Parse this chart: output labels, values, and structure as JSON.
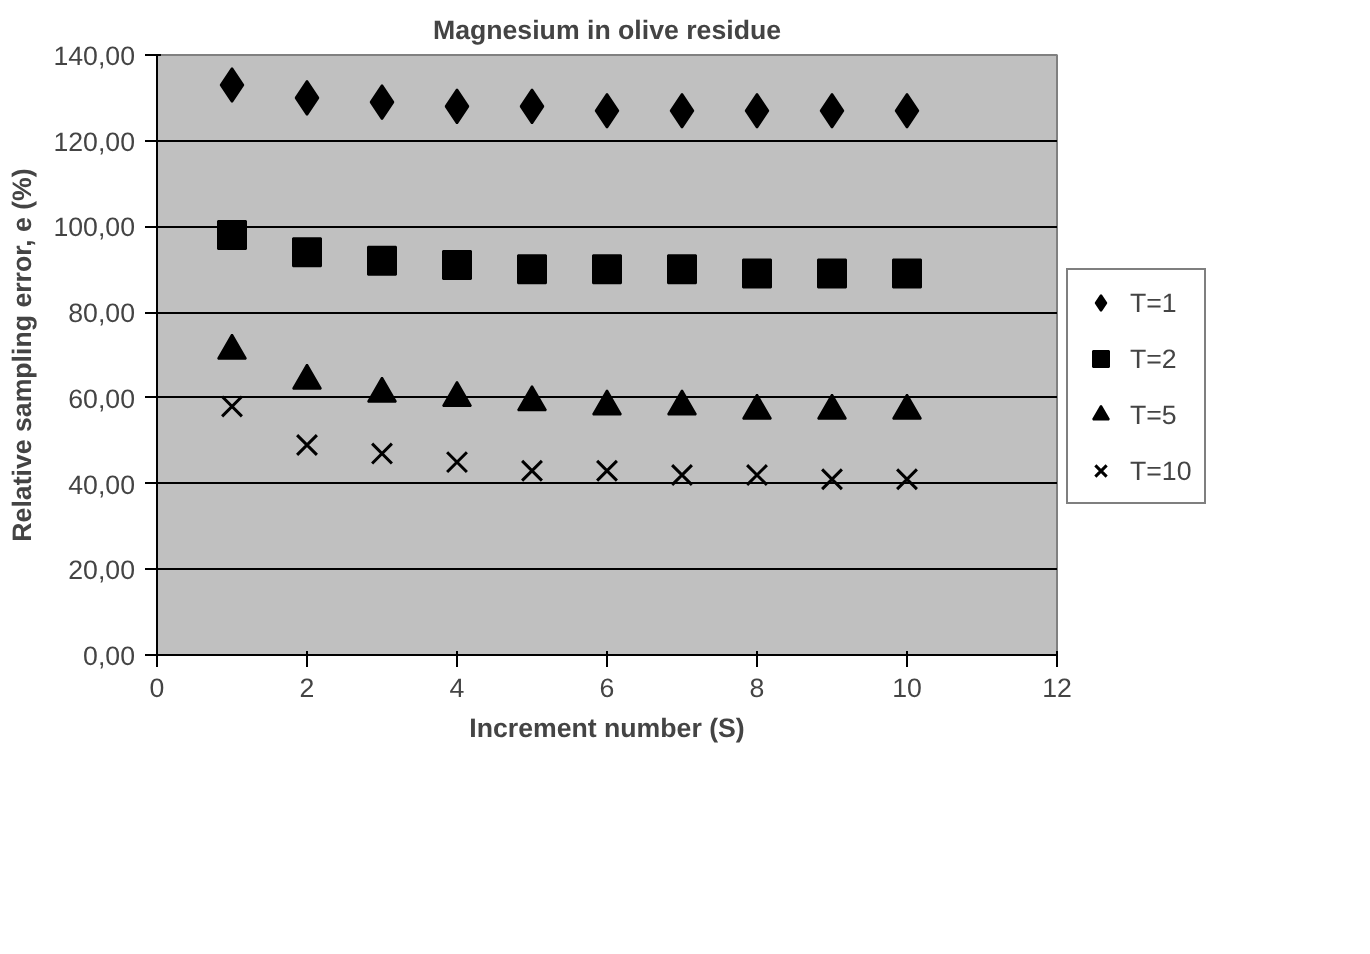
{
  "chart_data": {
    "type": "scatter",
    "title": "Magnesium in olive residue",
    "xlabel": "Increment number (S)",
    "ylabel": "Relative sampling error, e (%)",
    "x": [
      1,
      2,
      3,
      4,
      5,
      6,
      7,
      8,
      9,
      10
    ],
    "xlim": [
      0,
      12
    ],
    "xticks": [
      0,
      2,
      4,
      6,
      8,
      10,
      12
    ],
    "ylim": [
      0,
      140
    ],
    "yticks": [
      {
        "value": 0,
        "label": "0,00"
      },
      {
        "value": 20,
        "label": "20,00"
      },
      {
        "value": 40,
        "label": "40,00"
      },
      {
        "value": 60,
        "label": "60,00"
      },
      {
        "value": 80,
        "label": "80,00"
      },
      {
        "value": 100,
        "label": "100,00"
      },
      {
        "value": 120,
        "label": "120,00"
      },
      {
        "value": 140,
        "label": "140,00"
      }
    ],
    "grid": "y",
    "legend": "right",
    "series": [
      {
        "name": "T=1",
        "color": "#000000",
        "marker": "diamond",
        "values": [
          133,
          130,
          129,
          128,
          128,
          127,
          127,
          127,
          127,
          127
        ]
      },
      {
        "name": "T=2",
        "color": "#000000",
        "marker": "square",
        "values": [
          98,
          94,
          92,
          91,
          90,
          90,
          90,
          89,
          89,
          89
        ]
      },
      {
        "name": "T=5",
        "color": "#000000",
        "marker": "triangle",
        "values": [
          71,
          64,
          61,
          60,
          59,
          58,
          58,
          57,
          57,
          57
        ]
      },
      {
        "name": "T=10",
        "color": "#000000",
        "marker": "cross",
        "values": [
          58,
          49,
          47,
          45,
          43,
          43,
          42,
          42,
          41,
          41
        ]
      }
    ]
  }
}
